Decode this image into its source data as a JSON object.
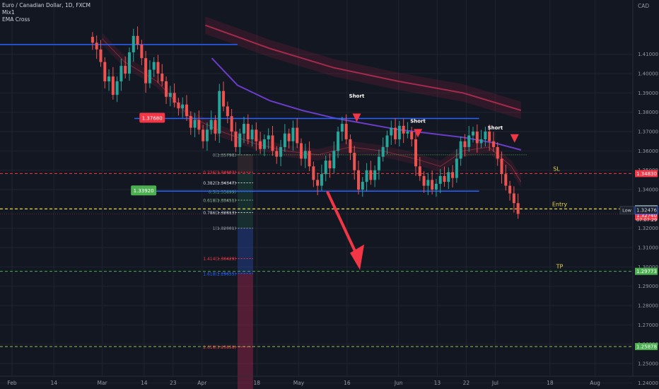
{
  "header": {
    "symbol": "Euro / Canadian Dollar, 1D, FXCM",
    "indicators": [
      "Mix1",
      "EMA Cross"
    ]
  },
  "chart_data": {
    "type": "candlestick",
    "currency_label": "CAD",
    "ylim": [
      1.235,
      1.425
    ],
    "y_ticks": [
      "1.41000",
      "1.40000",
      "1.39000",
      "1.38000",
      "1.37000",
      "1.36000",
      "1.35000",
      "1.34000",
      "1.33000",
      "1.32000",
      "1.31000",
      "1.30000",
      "1.29000",
      "1.28000",
      "1.27000",
      "1.26000",
      "1.25000",
      "1.24000"
    ],
    "x_ticks": [
      {
        "label": "Feb",
        "day": 0
      },
      {
        "label": "14",
        "day": 13
      },
      {
        "label": "Mar",
        "day": 28
      },
      {
        "label": "14",
        "day": 41
      },
      {
        "label": "23",
        "day": 50
      },
      {
        "label": "Apr",
        "day": 59
      },
      {
        "label": "18",
        "day": 76
      },
      {
        "label": "May",
        "day": 89
      },
      {
        "label": "16",
        "day": 104
      },
      {
        "label": "Jun",
        "day": 120
      },
      {
        "label": "13",
        "day": 132
      },
      {
        "label": "22",
        "day": 141
      },
      {
        "label": "Jul",
        "day": 150
      },
      {
        "label": "18",
        "day": 167
      },
      {
        "label": "Aug",
        "day": 181
      }
    ],
    "candles_start_day": 25,
    "candle_closes": [
      1.416,
      1.4125,
      1.406,
      1.396,
      1.3985,
      1.389,
      1.396,
      1.404,
      1.4,
      1.411,
      1.4195,
      1.415,
      1.408,
      1.395,
      1.402,
      1.406,
      1.4,
      1.396,
      1.388,
      1.39,
      1.385,
      1.382,
      1.384,
      1.378,
      1.372,
      1.376,
      1.371,
      1.365,
      1.371,
      1.376,
      1.369,
      1.391,
      1.383,
      1.378,
      1.37,
      1.362,
      1.369,
      1.374,
      1.366,
      1.371,
      1.365,
      1.361,
      1.366,
      1.368,
      1.36,
      1.357,
      1.362,
      1.369,
      1.365,
      1.372,
      1.364,
      1.356,
      1.36,
      1.352,
      1.345,
      1.342,
      1.348,
      1.355,
      1.351,
      1.36,
      1.37,
      1.374,
      1.366,
      1.359,
      1.35,
      1.34,
      1.344,
      1.35,
      1.345,
      1.35,
      1.357,
      1.362,
      1.368,
      1.372,
      1.366,
      1.373,
      1.369,
      1.37,
      1.366,
      1.352,
      1.347,
      1.342,
      1.345,
      1.34,
      1.343,
      1.347,
      1.344,
      1.349,
      1.346,
      1.356,
      1.365,
      1.362,
      1.368,
      1.37,
      1.364,
      1.366,
      1.37,
      1.365,
      1.362,
      1.356,
      1.348,
      1.342,
      1.338,
      1.333,
      1.3274
    ],
    "ema_fast": [
      [
        28,
        1.418
      ],
      [
        35,
        1.406
      ],
      [
        45,
        1.396
      ],
      [
        55,
        1.378
      ],
      [
        65,
        1.37
      ],
      [
        75,
        1.364
      ],
      [
        85,
        1.36
      ],
      [
        95,
        1.358
      ],
      [
        105,
        1.362
      ],
      [
        115,
        1.36
      ],
      [
        125,
        1.356
      ],
      [
        133,
        1.352
      ],
      [
        140,
        1.36
      ],
      [
        148,
        1.362
      ],
      [
        155,
        1.352
      ],
      [
        158,
        1.344
      ]
    ],
    "ema_slow": [
      [
        62,
        1.408
      ],
      [
        70,
        1.394
      ],
      [
        80,
        1.386
      ],
      [
        90,
        1.381
      ],
      [
        100,
        1.377
      ],
      [
        110,
        1.374
      ],
      [
        120,
        1.371
      ],
      [
        130,
        1.369
      ],
      [
        140,
        1.367
      ],
      [
        150,
        1.364
      ],
      [
        158,
        1.3605
      ]
    ],
    "ema_long": [
      [
        60,
        1.425
      ],
      [
        80,
        1.413
      ],
      [
        100,
        1.403
      ],
      [
        120,
        1.396
      ],
      [
        140,
        1.39
      ],
      [
        158,
        1.381
      ]
    ],
    "levels": {
      "resistance": {
        "value": 1.3768,
        "label": "1.37680"
      },
      "support": {
        "value": 1.3392,
        "label": "1.33920"
      },
      "top_line": {
        "value": 1.415
      },
      "sl": {
        "value": 1.3483,
        "label": "1.34830",
        "text": "SL"
      },
      "entry": {
        "value": 1.33,
        "label": "1.32998",
        "text": "Entry"
      },
      "current": {
        "value": 1.3274,
        "label": "1.32740",
        "countdown": "07:07:29"
      },
      "low": {
        "value": 1.32476,
        "label": "1.32476",
        "text": "Low"
      },
      "tp": {
        "value": 1.2977,
        "label": "1.29773",
        "text": "TP"
      },
      "ext": {
        "value": 1.2588,
        "label": "1.25878"
      }
    },
    "fib_levels": [
      {
        "ratio": "0",
        "value": 1.35798,
        "label": "0(1.35798)",
        "color": "#9598a1"
      },
      {
        "ratio": "0.236",
        "value": 1.34903,
        "label": "0.236(1.34903)",
        "color": "#f23645"
      },
      {
        "ratio": "0.382",
        "value": 1.34347,
        "label": "0.382(1.34347)",
        "color": "#d1d4dc"
      },
      {
        "ratio": "0.5",
        "value": 1.33899,
        "label": "0.5(1.33899)",
        "color": "#4caf50"
      },
      {
        "ratio": "0.618",
        "value": 1.33451,
        "label": "0.618(1.33451)",
        "color": "#8fbc8f"
      },
      {
        "ratio": "0.786",
        "value": 1.32813,
        "label": "0.786(1.32813)",
        "color": "#d1d4dc"
      },
      {
        "ratio": "1",
        "value": 1.32001,
        "label": "1(1.32001)",
        "color": "#9598a1"
      },
      {
        "ratio": "1.414",
        "value": 1.30429,
        "label": "1.414(1.30429)",
        "color": "#f23645"
      },
      {
        "ratio": "1.618",
        "value": 1.29655,
        "label": "1.618(1.29655)",
        "color": "#2962ff"
      },
      {
        "ratio": "2.618",
        "value": 1.25858,
        "label": "2.618(1.25858)",
        "color": "#f23645"
      }
    ],
    "annotations": [
      {
        "text": "Short",
        "day": 107,
        "y": 1.3875
      },
      {
        "text": "Short",
        "day": 126,
        "y": 1.3745
      },
      {
        "text": "Short",
        "day": 150,
        "y": 1.3712
      }
    ],
    "markers": [
      {
        "day": 107,
        "y": 1.3775
      },
      {
        "day": 126,
        "y": 1.3695
      },
      {
        "day": 156,
        "y": 1.3668
      }
    ]
  }
}
